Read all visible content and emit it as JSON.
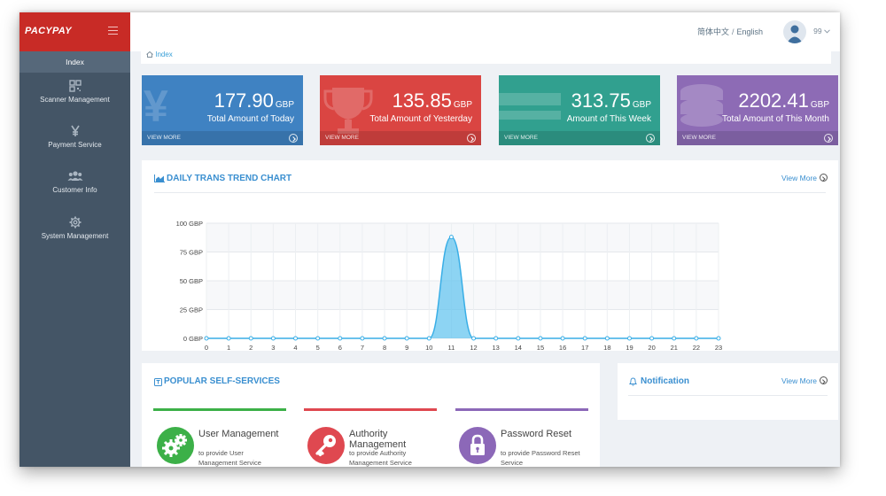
{
  "brand": {
    "name": "PACYPAY"
  },
  "sidebar": {
    "active": "Index",
    "items": [
      {
        "label": "Scanner Management",
        "icon": "qrcode-icon"
      },
      {
        "label": "Payment Service",
        "icon": "yen-icon"
      },
      {
        "label": "Customer Info",
        "icon": "users-icon"
      },
      {
        "label": "System Management",
        "icon": "gear-icon"
      }
    ]
  },
  "header": {
    "lang_zh": "简体中文",
    "lang_sep": "/",
    "lang_en": "English",
    "username": "99"
  },
  "breadcrumb": {
    "label": "Index"
  },
  "stats": [
    {
      "amount": "177.90",
      "currency": "GBP",
      "label": "Total Amount of Today",
      "footer": "VIEW MORE",
      "color": "#3f82c2",
      "bg_glyph": "¥"
    },
    {
      "amount": "135.85",
      "currency": "GBP",
      "label": "Total Amount of Yesterday",
      "footer": "VIEW MORE",
      "color": "#da4542",
      "bg_glyph": ""
    },
    {
      "amount": "313.75",
      "currency": "GBP",
      "label": "Amount of This Week",
      "footer": "VIEW MORE",
      "color": "#31a08f",
      "bg_glyph": ""
    },
    {
      "amount": "2202.41",
      "currency": "GBP",
      "label": "Total Amount of This Month",
      "footer": "VIEW MORE",
      "color": "#8d6bb5",
      "bg_glyph": ""
    }
  ],
  "trend": {
    "title": "DAILY TRANS TREND CHART",
    "view_more": "View More"
  },
  "chart_data": {
    "type": "area",
    "x": [
      0,
      1,
      2,
      3,
      4,
      5,
      6,
      7,
      8,
      9,
      10,
      11,
      12,
      13,
      14,
      15,
      16,
      17,
      18,
      19,
      20,
      21,
      22,
      23
    ],
    "values": [
      0,
      0,
      0,
      0,
      0,
      0,
      0,
      0,
      0,
      0,
      0,
      88,
      0,
      0,
      0,
      0,
      0,
      0,
      0,
      0,
      0,
      0,
      0,
      0
    ],
    "y_ticks": [
      "0 GBP",
      "25 GBP",
      "50 GBP",
      "75 GBP",
      "100 GBP"
    ],
    "ylim": [
      0,
      100
    ],
    "grid": true,
    "color": "#5cc2ee"
  },
  "popular": {
    "title": "POPULAR SELF-SERVICES",
    "items": [
      {
        "name": "User Management",
        "desc": "to provide User Management Service",
        "color": "#3cb048",
        "icon": "gears-icon"
      },
      {
        "name": "Authority Management",
        "desc": "to provide Authority Management Service",
        "color": "#df4850",
        "icon": "key-icon"
      },
      {
        "name": "Password Reset",
        "desc": "to provide Password Reset Service",
        "color": "#8c68b8",
        "icon": "lock-icon"
      }
    ]
  },
  "notification": {
    "title": "Notification",
    "view_more": "View More"
  }
}
